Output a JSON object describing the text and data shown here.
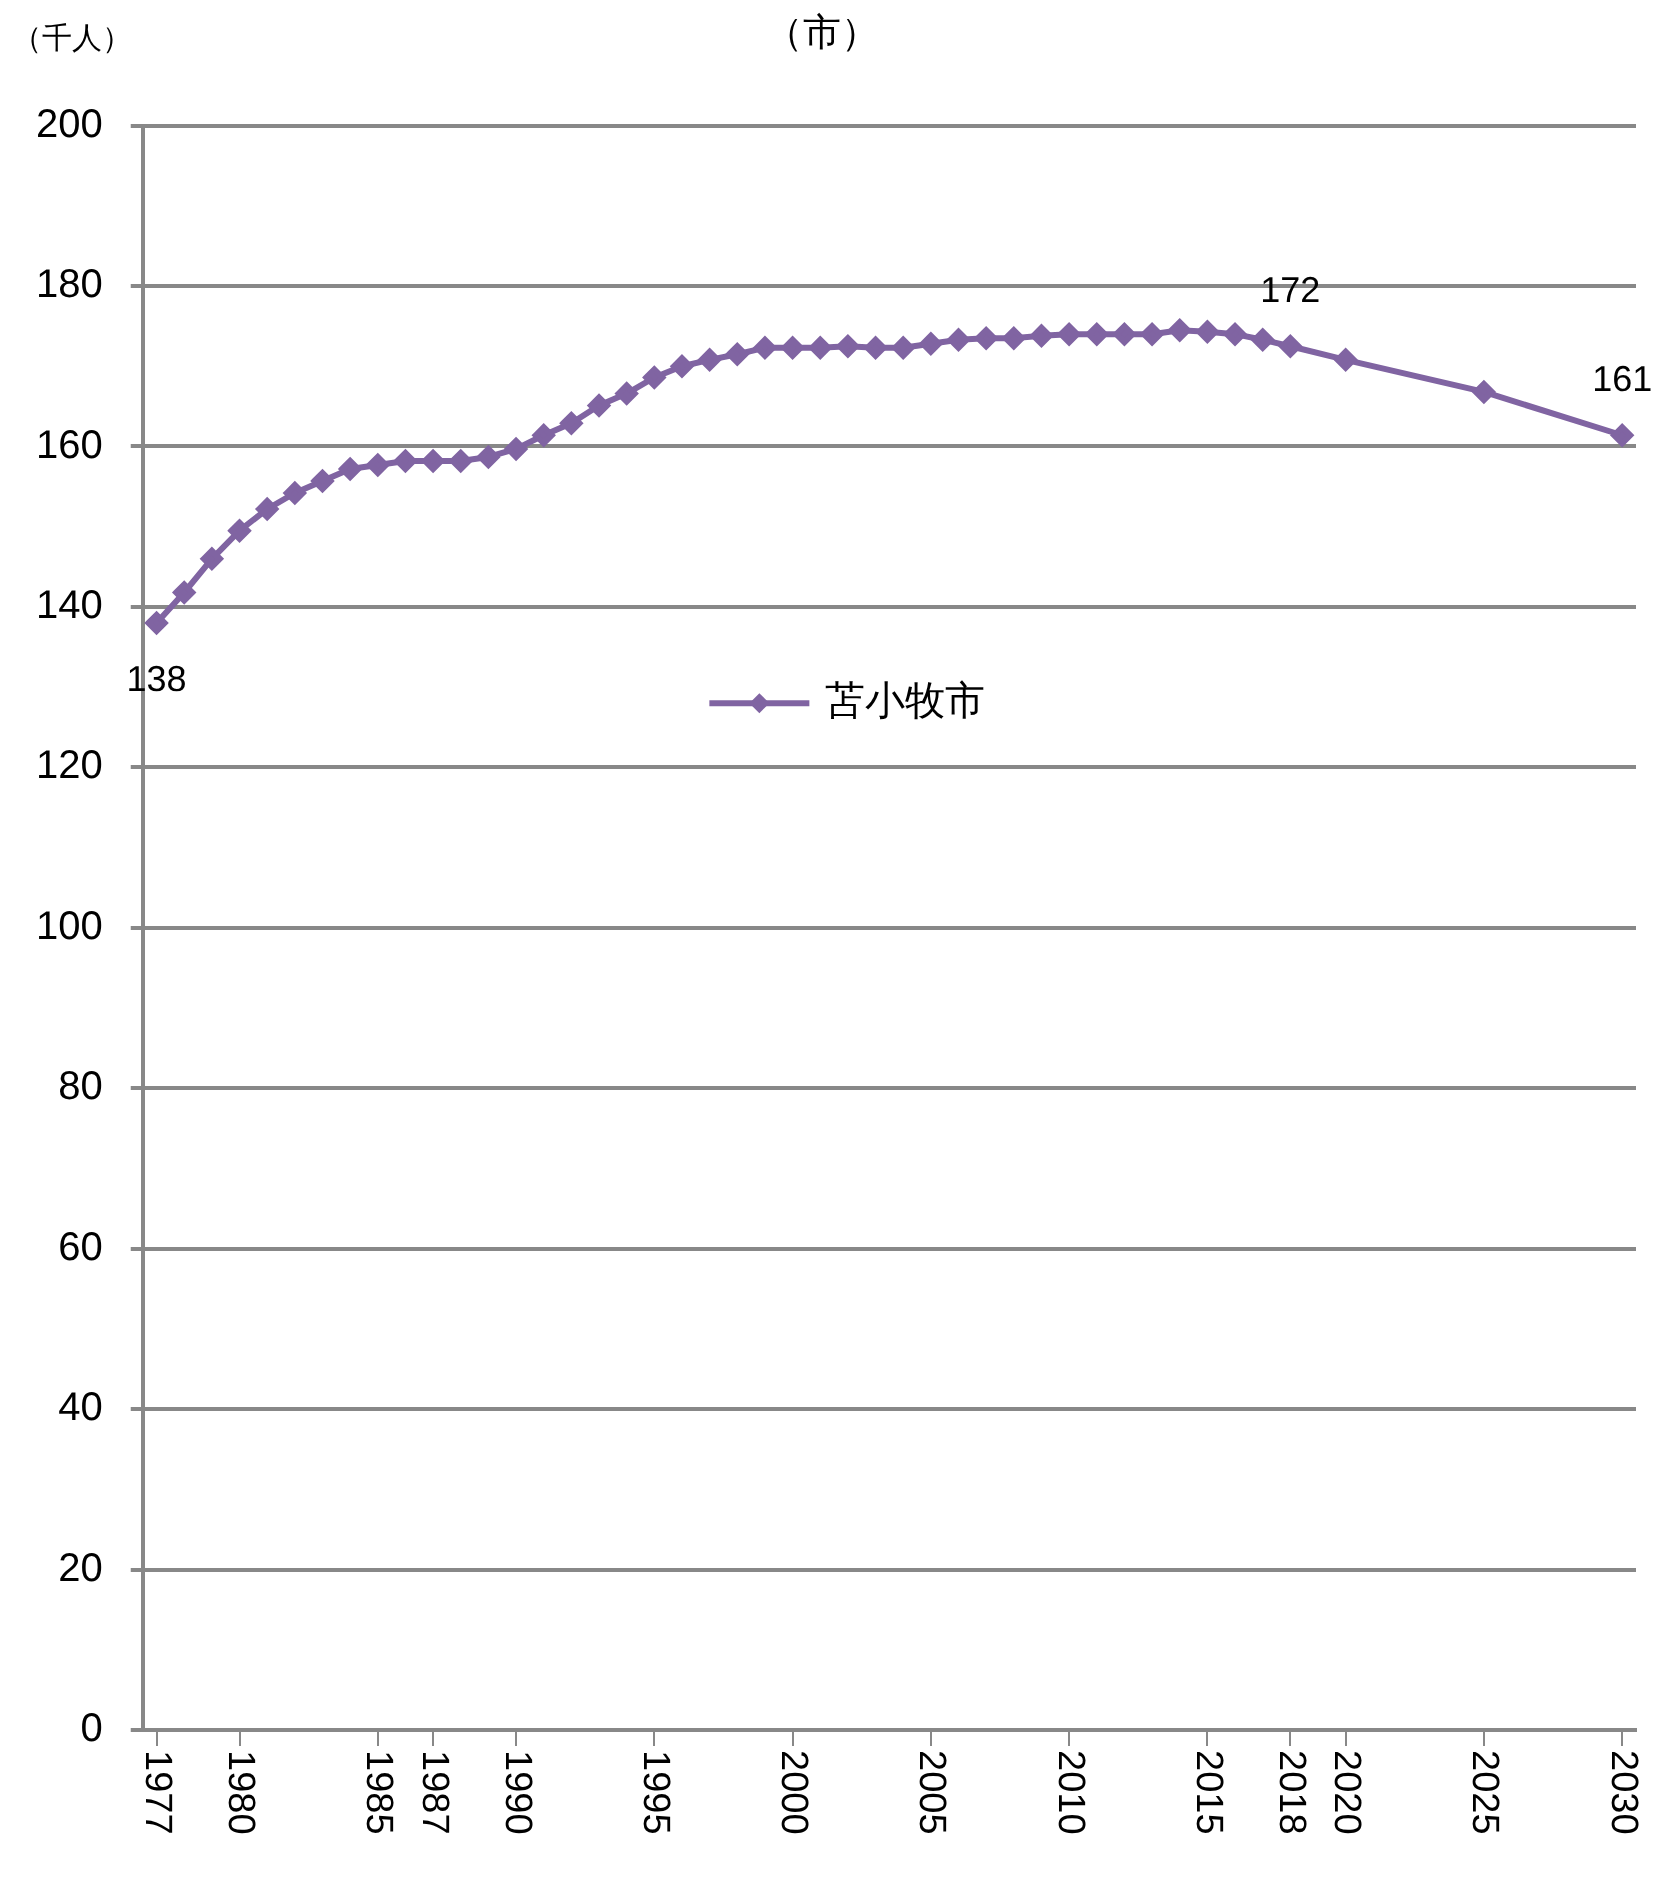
{
  "chart_data": {
    "type": "line",
    "title": "（市）",
    "ylabel": "（千人）",
    "x": [
      1977,
      1978,
      1979,
      1980,
      1981,
      1982,
      1983,
      1984,
      1985,
      1986,
      1987,
      1988,
      1989,
      1990,
      1991,
      1992,
      1993,
      1994,
      1995,
      1996,
      1997,
      1998,
      1999,
      2000,
      2001,
      2002,
      2003,
      2004,
      2005,
      2006,
      2007,
      2008,
      2009,
      2010,
      2011,
      2012,
      2013,
      2014,
      2015,
      2016,
      2017,
      2018,
      2020,
      2025,
      2030
    ],
    "series": [
      {
        "name": "苫小牧市",
        "color": "#8064a2",
        "values": [
          138,
          141.8,
          146,
          149.5,
          152.2,
          154.2,
          155.7,
          157.2,
          157.7,
          158.2,
          158.2,
          158.2,
          158.7,
          159.7,
          161.4,
          162.9,
          165.1,
          166.6,
          168.6,
          170,
          170.8,
          171.5,
          172.3,
          172.3,
          172.3,
          172.5,
          172.3,
          172.3,
          172.8,
          173.3,
          173.5,
          173.5,
          173.8,
          174,
          174,
          174,
          174,
          174.5,
          174.3,
          174,
          173.3,
          172.5,
          170.8,
          166.8,
          161.4
        ],
        "value_labels": [
          "138",
          null,
          null,
          null,
          null,
          null,
          null,
          null,
          null,
          null,
          null,
          null,
          null,
          null,
          null,
          null,
          null,
          null,
          null,
          null,
          null,
          null,
          null,
          null,
          null,
          null,
          null,
          null,
          null,
          null,
          null,
          null,
          null,
          null,
          null,
          null,
          null,
          null,
          null,
          null,
          null,
          "172",
          null,
          null,
          "161"
        ]
      }
    ],
    "xlim": [
      1976.5,
      2030.5
    ],
    "xticks": [
      1977,
      1980,
      1985,
      1987,
      1990,
      1995,
      2000,
      2005,
      2010,
      2015,
      2018,
      2020,
      2025,
      2030
    ],
    "ylim": [
      0,
      200
    ],
    "yticks": [
      0,
      20,
      40,
      60,
      80,
      100,
      120,
      140,
      160,
      180,
      200
    ],
    "grid": "y",
    "legend": "center",
    "marker": "diamond",
    "line_style": "solid"
  }
}
